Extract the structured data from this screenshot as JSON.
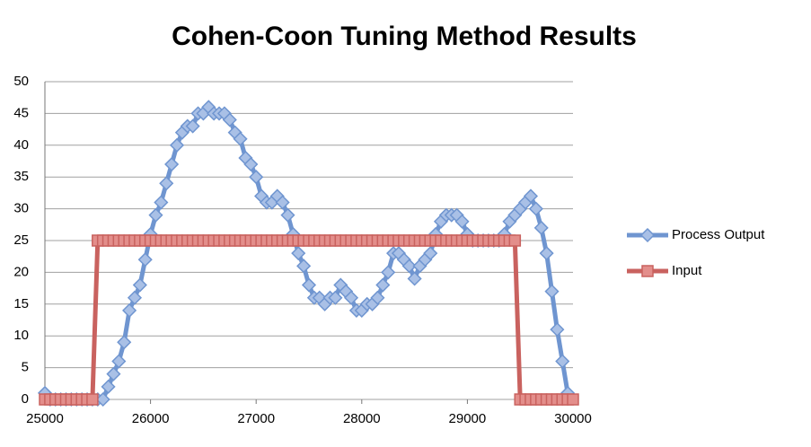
{
  "chart_data": {
    "type": "line",
    "title": "Cohen-Coon Tuning Method Results",
    "xlim": [
      25000,
      30000
    ],
    "xticks": [
      25000,
      26000,
      27000,
      28000,
      29000,
      30000
    ],
    "ylim": [
      0,
      50
    ],
    "yticks": [
      0,
      5,
      10,
      15,
      20,
      25,
      30,
      35,
      40,
      45,
      50
    ],
    "grid": true,
    "legend": "right",
    "series": [
      {
        "name": "Process Output",
        "color": "#6f95d0",
        "marker": "diamond",
        "x": [
          25000,
          25050,
          25100,
          25150,
          25200,
          25250,
          25300,
          25350,
          25400,
          25450,
          25500,
          25550,
          25600,
          25650,
          25700,
          25750,
          25800,
          25850,
          25900,
          25950,
          26000,
          26050,
          26100,
          26150,
          26200,
          26250,
          26300,
          26350,
          26400,
          26450,
          26500,
          26550,
          26600,
          26650,
          26700,
          26750,
          26800,
          26850,
          26900,
          26950,
          27000,
          27050,
          27100,
          27150,
          27200,
          27250,
          27300,
          27350,
          27400,
          27450,
          27500,
          27550,
          27600,
          27650,
          27700,
          27750,
          27800,
          27850,
          27900,
          27950,
          28000,
          28050,
          28100,
          28150,
          28200,
          28250,
          28300,
          28350,
          28400,
          28450,
          28500,
          28550,
          28600,
          28650,
          28700,
          28750,
          28800,
          28850,
          28900,
          28950,
          29000,
          29050,
          29100,
          29150,
          29200,
          29250,
          29300,
          29350,
          29400,
          29450,
          29500,
          29550,
          29600,
          29650,
          29700,
          29750,
          29800,
          29850,
          29900,
          29950
        ],
        "values": [
          1,
          0,
          0,
          0,
          0,
          0,
          0,
          0,
          0,
          0,
          0,
          0,
          2,
          4,
          6,
          9,
          14,
          16,
          18,
          22,
          26,
          29,
          31,
          34,
          37,
          40,
          42,
          43,
          43,
          45,
          45,
          46,
          45,
          45,
          45,
          44,
          42,
          41,
          38,
          37,
          35,
          32,
          31,
          31,
          32,
          31,
          29,
          26,
          23,
          21,
          18,
          16,
          16,
          15,
          16,
          16,
          18,
          17,
          16,
          14,
          14,
          15,
          15,
          16,
          18,
          20,
          23,
          23,
          22,
          21,
          19,
          21,
          22,
          23,
          26,
          28,
          29,
          29,
          29,
          28,
          26,
          25,
          25,
          25,
          25,
          25,
          25,
          26,
          28,
          29,
          30,
          31,
          32,
          30,
          27,
          23,
          17,
          11,
          6,
          1
        ]
      },
      {
        "name": "Input",
        "color": "#c9625f",
        "marker": "square",
        "x": [
          25000,
          25050,
          25100,
          25150,
          25200,
          25250,
          25300,
          25350,
          25400,
          25450,
          25500,
          25550,
          25600,
          25650,
          25700,
          25750,
          25800,
          25850,
          25900,
          25950,
          26000,
          26050,
          26100,
          26150,
          26200,
          26250,
          26300,
          26350,
          26400,
          26450,
          26500,
          26550,
          26600,
          26650,
          26700,
          26750,
          26800,
          26850,
          26900,
          26950,
          27000,
          27050,
          27100,
          27150,
          27200,
          27250,
          27300,
          27350,
          27400,
          27450,
          27500,
          27550,
          27600,
          27650,
          27700,
          27750,
          27800,
          27850,
          27900,
          27950,
          28000,
          28050,
          28100,
          28150,
          28200,
          28250,
          28300,
          28350,
          28400,
          28450,
          28500,
          28550,
          28600,
          28650,
          28700,
          28750,
          28800,
          28850,
          28900,
          28950,
          29000,
          29050,
          29100,
          29150,
          29200,
          29250,
          29300,
          29350,
          29400,
          29450,
          29500,
          29550,
          29600,
          29650,
          29700,
          29750,
          29800,
          29850,
          29900,
          29950,
          30000
        ],
        "values": [
          0,
          0,
          0,
          0,
          0,
          0,
          0,
          0,
          0,
          0,
          25,
          25,
          25,
          25,
          25,
          25,
          25,
          25,
          25,
          25,
          25,
          25,
          25,
          25,
          25,
          25,
          25,
          25,
          25,
          25,
          25,
          25,
          25,
          25,
          25,
          25,
          25,
          25,
          25,
          25,
          25,
          25,
          25,
          25,
          25,
          25,
          25,
          25,
          25,
          25,
          25,
          25,
          25,
          25,
          25,
          25,
          25,
          25,
          25,
          25,
          25,
          25,
          25,
          25,
          25,
          25,
          25,
          25,
          25,
          25,
          25,
          25,
          25,
          25,
          25,
          25,
          25,
          25,
          25,
          25,
          25,
          25,
          25,
          25,
          25,
          25,
          25,
          25,
          25,
          25,
          0,
          0,
          0,
          0,
          0,
          0,
          0,
          0,
          0,
          0,
          0
        ]
      }
    ]
  }
}
